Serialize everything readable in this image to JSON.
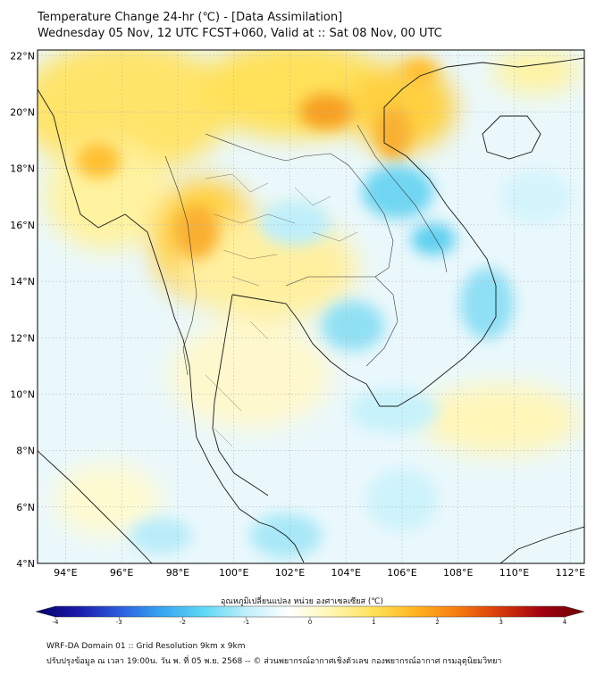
{
  "title": {
    "line1": "Temperature Change 24-hr (℃) - [Data Assimilation]",
    "line2": "Wednesday 05 Nov, 12 UTC FCST+060, Valid at :: Sat 08 Nov, 00 UTC"
  },
  "map": {
    "region": "Mainland Southeast Asia",
    "lat_labels": [
      "22°N",
      "20°N",
      "18°N",
      "16°N",
      "14°N",
      "12°N",
      "10°N",
      "8°N",
      "6°N",
      "4°N"
    ],
    "lon_labels": [
      "94°E",
      "96°E",
      "98°E",
      "100°E",
      "102°E",
      "104°E",
      "106°E",
      "108°E",
      "110°E",
      "112°E"
    ],
    "field": "24-hr temperature change",
    "warm_areas": [
      "northern Myanmar",
      "northern Laos / Vietnam",
      "western Thailand"
    ],
    "cool_areas": [
      "central Laos",
      "eastern Thailand",
      "Gulf of Thailand",
      "South China Sea"
    ]
  },
  "colorbar": {
    "title": "อุณหภูมิเปลี่ยนแปลง หน่วย องศาเซลเซียส (℃)",
    "ticks": [
      "-4",
      "-3",
      "-2",
      "-1",
      "0",
      "1",
      "2",
      "3",
      "4"
    ],
    "min": -4,
    "max": 4,
    "colors": [
      "#05006b",
      "#1a1aa8",
      "#2c5ee0",
      "#37a6f0",
      "#5fd8f5",
      "#bfeffb",
      "#ffffff",
      "#fff7b0",
      "#ffe15a",
      "#ffb520",
      "#f77a10",
      "#d63a0a",
      "#a00010",
      "#6a0000"
    ]
  },
  "footer": {
    "line1": "WRF-DA Domain 01 :: Grid Resolution 9km x 9km",
    "line2": "ปรับปรุงข้อมูล ณ เวลา 19:00น. วัน พ. ที่ 05 พ.ย. 2568 -- © ส่วนพยากรณ์อากาศเชิงตัวเลข กองพยากรณ์อากาศ กรมอุตุนิยมวิทยา"
  }
}
